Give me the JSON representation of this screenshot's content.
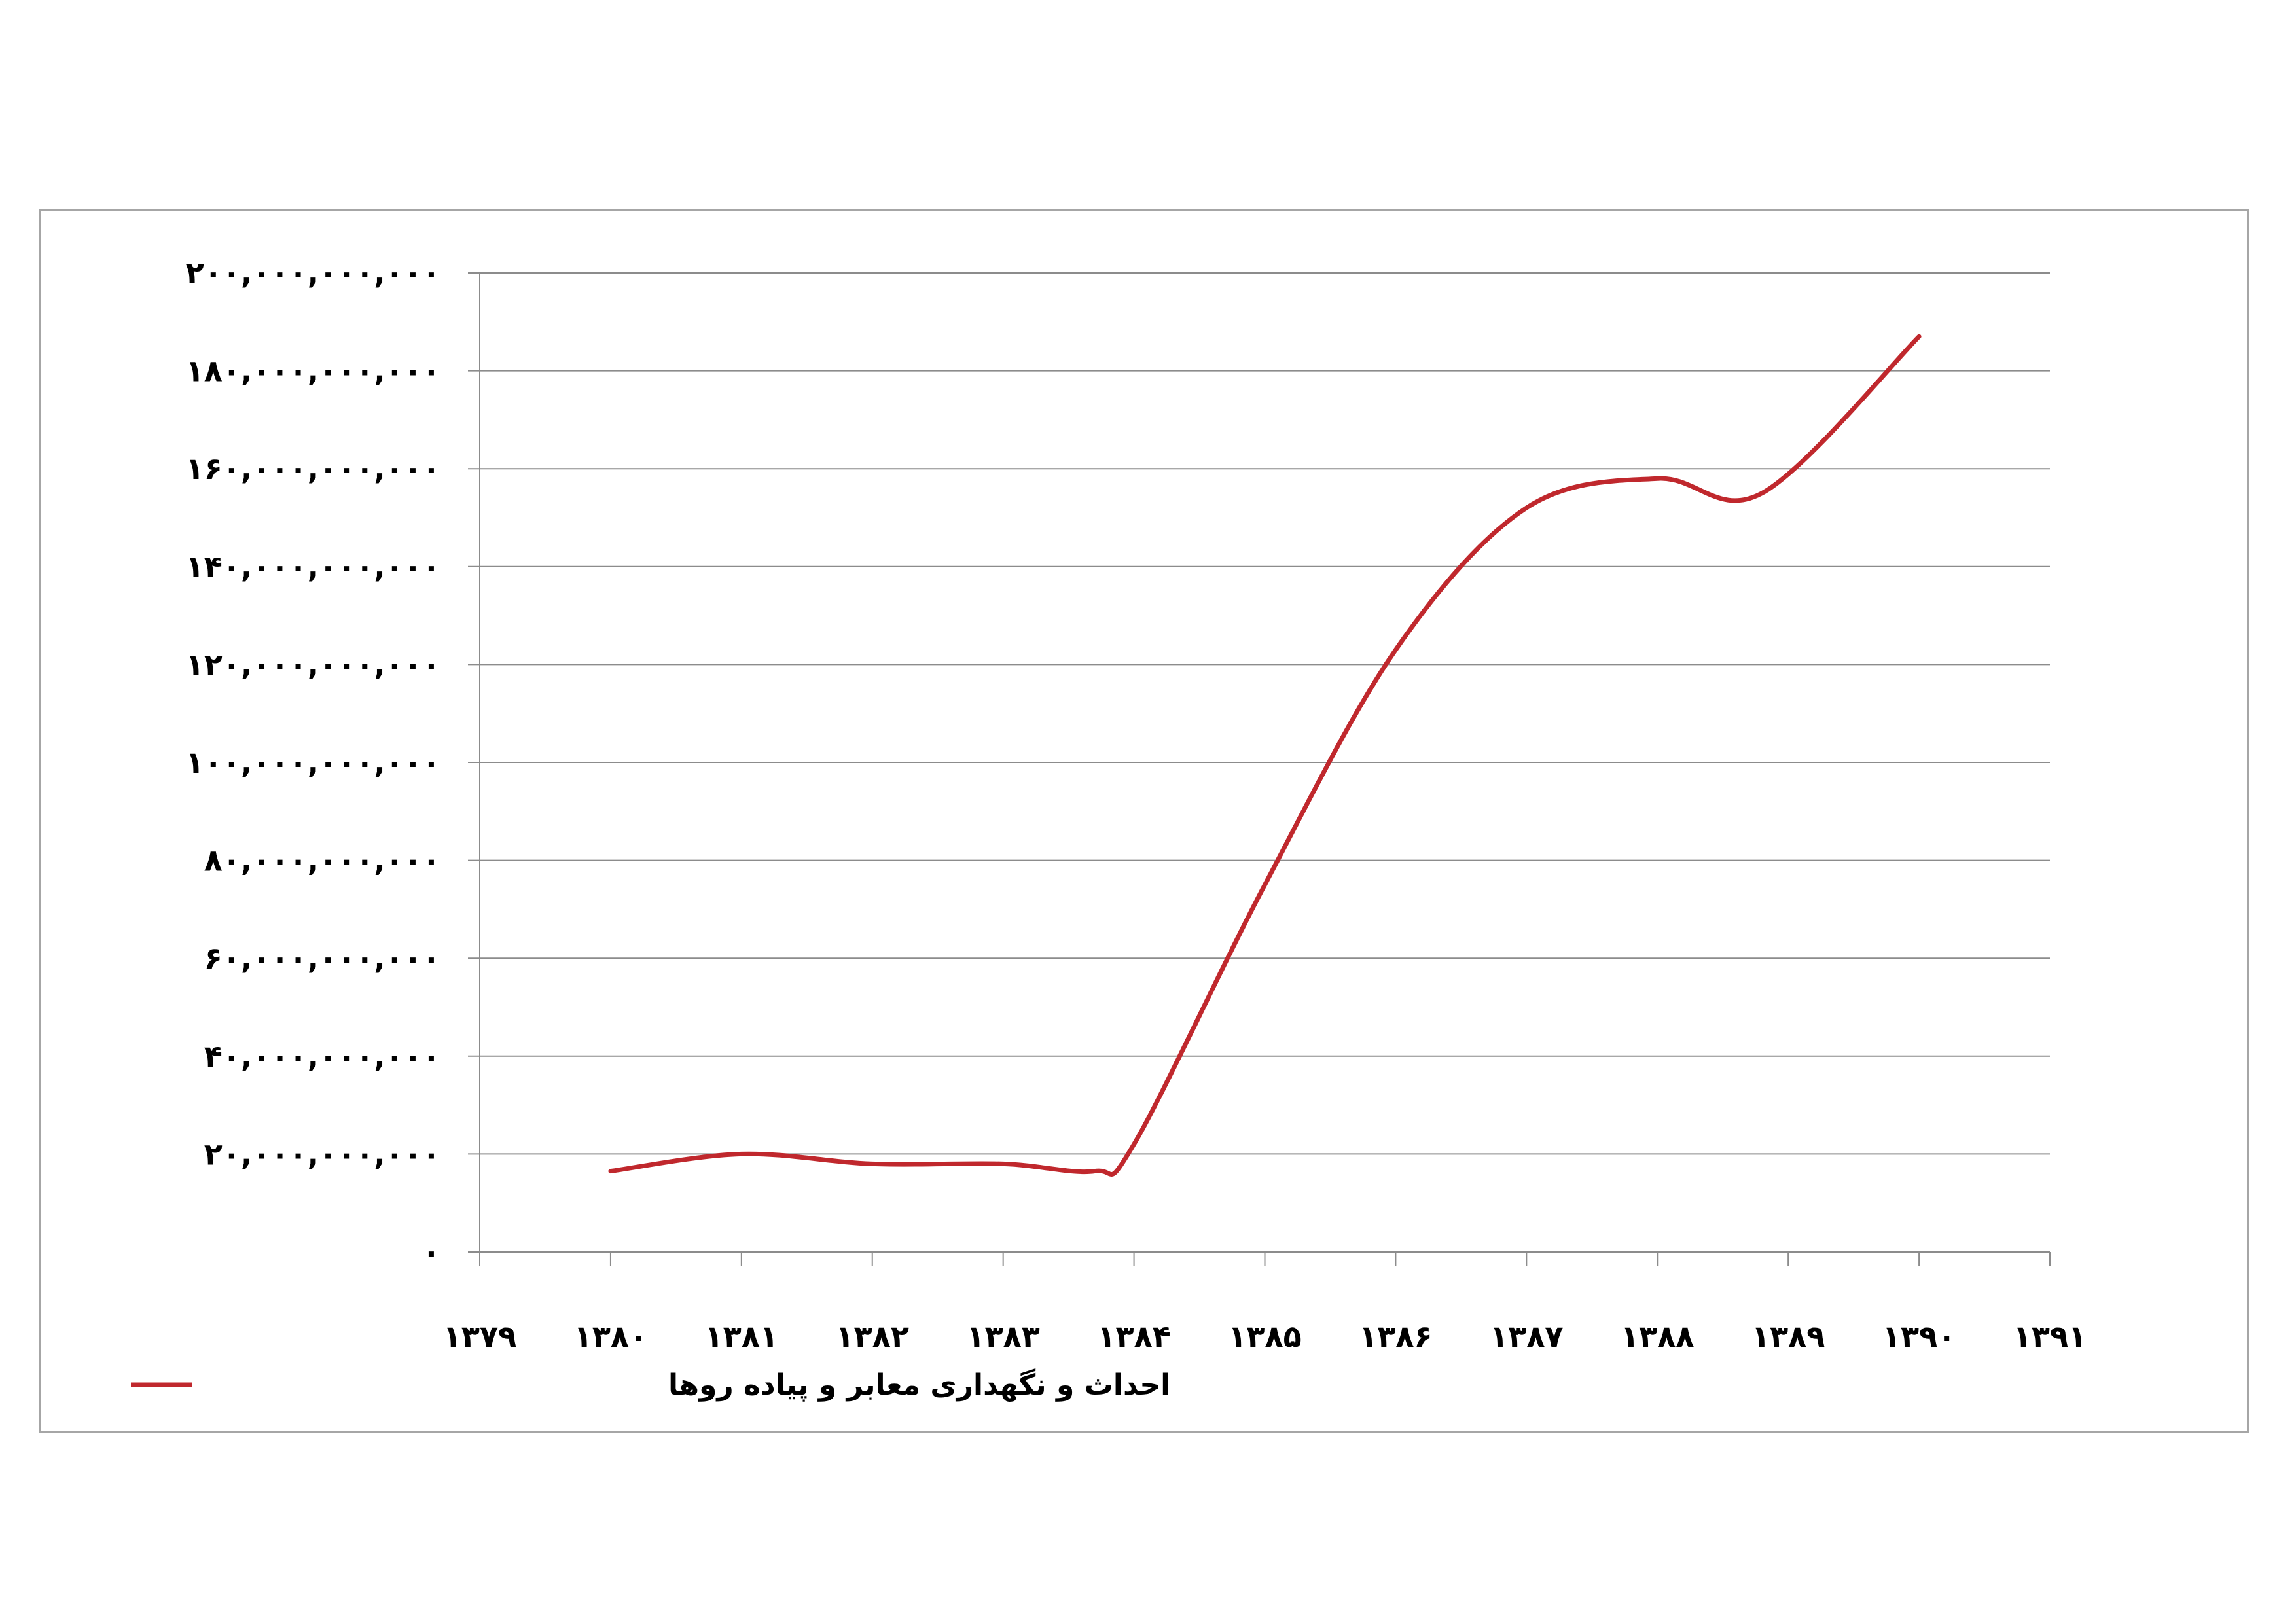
{
  "chart_data": {
    "type": "line",
    "title": "",
    "xlabel": "",
    "ylabel": "",
    "x_tick_labels": [
      "۱۳۷۹",
      "۱۳۸۰",
      "۱۳۸۱",
      "۱۳۸۲",
      "۱۳۸۳",
      "۱۳۸۴",
      "۱۳۸۵",
      "۱۳۸۶",
      "۱۳۸۷",
      "۱۳۸۸",
      "۱۳۸۹",
      "۱۳۹۰",
      "۱۳۹۱"
    ],
    "y_tick_labels": [
      "۰",
      "۲۰,۰۰۰,۰۰۰,۰۰۰",
      "۴۰,۰۰۰,۰۰۰,۰۰۰",
      "۶۰,۰۰۰,۰۰۰,۰۰۰",
      "۸۰,۰۰۰,۰۰۰,۰۰۰",
      "۱۰۰,۰۰۰,۰۰۰,۰۰۰",
      "۱۲۰,۰۰۰,۰۰۰,۰۰۰",
      "۱۴۰,۰۰۰,۰۰۰,۰۰۰",
      "۱۶۰,۰۰۰,۰۰۰,۰۰۰",
      "۱۸۰,۰۰۰,۰۰۰,۰۰۰",
      "۲۰۰,۰۰۰,۰۰۰,۰۰۰"
    ],
    "ylim": [
      0,
      200000000000
    ],
    "y_tick_values": [
      0,
      20000000000,
      40000000000,
      60000000000,
      80000000000,
      100000000000,
      120000000000,
      140000000000,
      160000000000,
      180000000000,
      200000000000
    ],
    "grid": true,
    "smooth": true,
    "legend_position": "bottom-left",
    "series": [
      {
        "name": "احداث و نگهداری معابر و پیاده روها",
        "color": "#c0282d",
        "points": [
          {
            "x": 1380,
            "y": 16500000000
          },
          {
            "x": 1381,
            "y": 20000000000
          },
          {
            "x": 1382,
            "y": 18000000000
          },
          {
            "x": 1383,
            "y": 18000000000
          },
          {
            "x": 1383.7,
            "y": 16500000000
          },
          {
            "x": 1384,
            "y": 22000000000
          },
          {
            "x": 1385,
            "y": 75000000000
          },
          {
            "x": 1386,
            "y": 123000000000
          },
          {
            "x": 1387,
            "y": 152000000000
          },
          {
            "x": 1388,
            "y": 158000000000
          },
          {
            "x": 1388.8,
            "y": 155000000000
          },
          {
            "x": 1390,
            "y": 187000000000
          }
        ]
      }
    ]
  }
}
